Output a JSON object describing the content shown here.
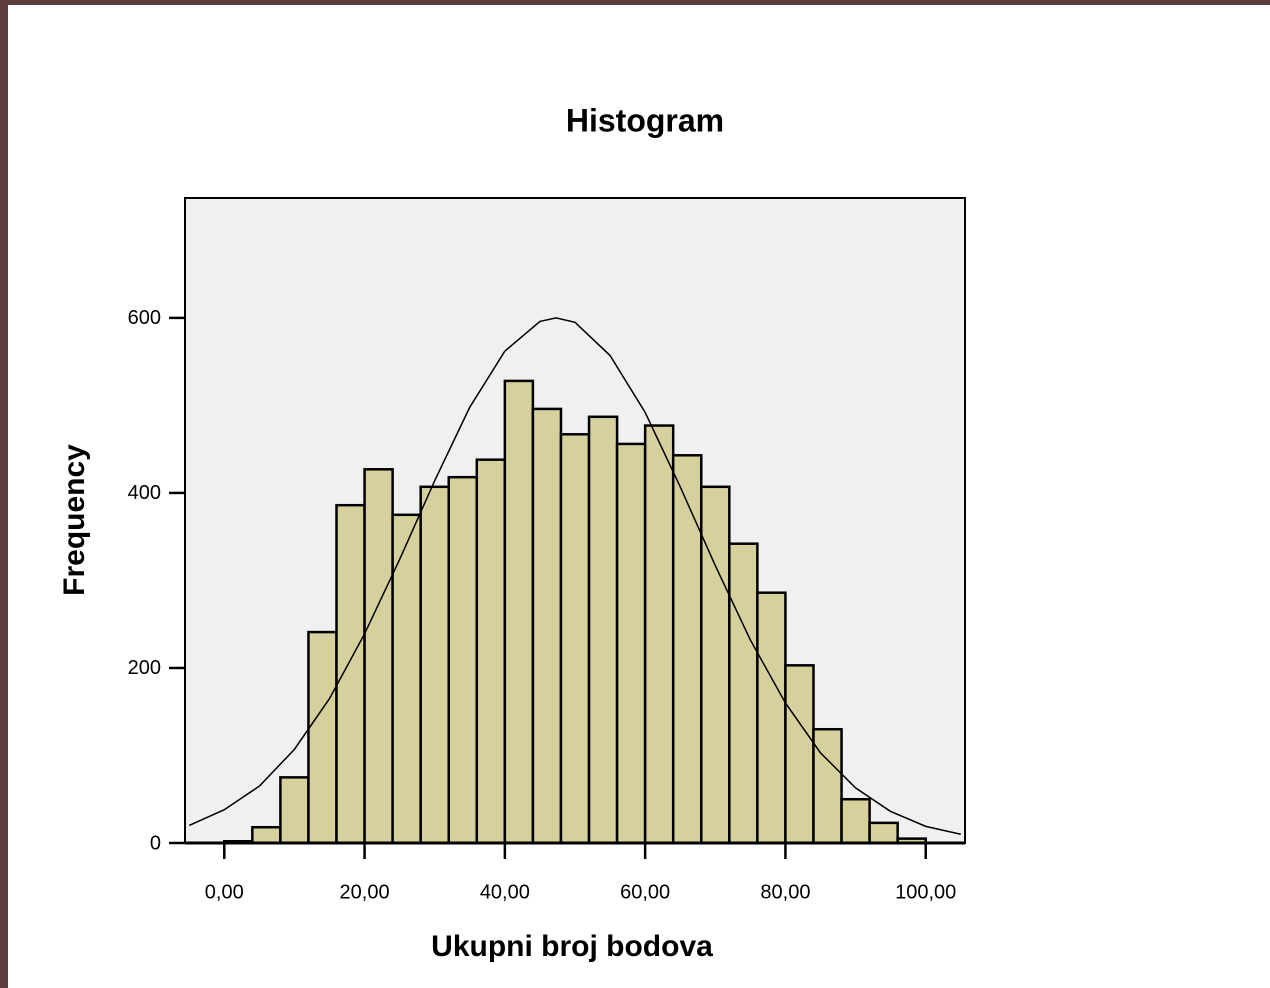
{
  "chart_data": {
    "type": "histogram",
    "title": "Histogram",
    "x_label": "Ukupni broj bodova",
    "y_label": "Frequency",
    "bins": [
      0,
      4,
      8,
      12,
      16,
      20,
      24,
      28,
      32,
      36,
      40,
      44,
      48,
      52,
      56,
      60,
      64,
      68,
      72,
      76,
      80,
      84,
      88,
      92,
      96,
      100
    ],
    "values": [
      2,
      18,
      75,
      241,
      386,
      427,
      375,
      407,
      418,
      438,
      528,
      496,
      467,
      487,
      456,
      477,
      443,
      407,
      342,
      286,
      203,
      130,
      50,
      23,
      5
    ],
    "color": "#d6d19c",
    "curve": {
      "x": [
        -5,
        0,
        5,
        10,
        15,
        20,
        25,
        30,
        35,
        40,
        45,
        47.3,
        50,
        55,
        60,
        65,
        70,
        75,
        80,
        85,
        90,
        95,
        100,
        105
      ],
      "values": [
        20,
        38,
        65,
        107,
        165,
        239,
        324,
        414,
        498,
        562,
        596,
        600,
        595,
        557,
        492,
        407,
        317,
        232,
        160,
        103,
        63,
        36,
        19,
        10
      ],
      "color": "#000000"
    },
    "xlim": [
      -5.6,
      105.6
    ],
    "ylim": [
      0,
      737
    ],
    "xticks": [
      {
        "value": 0,
        "label": "0,00"
      },
      {
        "value": 20,
        "label": "20,00"
      },
      {
        "value": 40,
        "label": "40,00"
      },
      {
        "value": 60,
        "label": "60,00"
      },
      {
        "value": 80,
        "label": "80,00"
      },
      {
        "value": 100,
        "label": "100,00"
      }
    ],
    "yticks": [
      0,
      200,
      400,
      600
    ]
  }
}
